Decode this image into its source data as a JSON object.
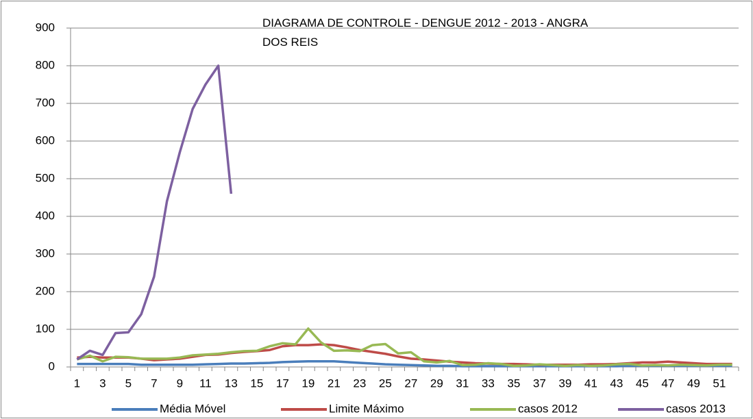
{
  "chart_data": {
    "type": "line",
    "title": "DIAGRAMA DE CONTROLE - DENGUE 2012 - 2013 - ANGRA DOS REIS",
    "categories": [
      "1",
      null,
      "3",
      null,
      "5",
      null,
      "7",
      null,
      "9",
      null,
      "11",
      null,
      "13",
      null,
      "15",
      null,
      "17",
      null,
      "19",
      null,
      "21",
      null,
      "23",
      null,
      "25",
      null,
      "27",
      null,
      "29",
      null,
      "31",
      null,
      "33",
      null,
      "35",
      null,
      "37",
      null,
      "39",
      null,
      "41",
      null,
      "43",
      null,
      "45",
      null,
      "47",
      null,
      "49",
      null,
      "51",
      null
    ],
    "series": [
      {
        "name": "Média Móvel",
        "color": "#4a7ebb",
        "values": [
          8,
          8,
          8,
          8,
          8,
          6,
          6,
          6,
          6,
          6,
          7,
          8,
          9,
          9,
          10,
          11,
          13,
          14,
          15,
          15,
          15,
          13,
          11,
          9,
          7,
          6,
          5,
          4,
          3,
          3,
          2,
          2,
          2,
          2,
          2,
          2,
          2,
          2,
          2,
          2,
          2,
          2,
          2,
          3,
          3,
          3,
          3,
          3,
          3,
          3,
          3,
          3
        ]
      },
      {
        "name": "Limite Máximo",
        "color": "#be4b48",
        "values": [
          25,
          27,
          25,
          25,
          25,
          22,
          18,
          20,
          22,
          27,
          32,
          33,
          37,
          40,
          42,
          45,
          55,
          58,
          58,
          60,
          58,
          52,
          45,
          40,
          35,
          28,
          22,
          20,
          17,
          14,
          12,
          10,
          9,
          8,
          8,
          7,
          6,
          6,
          6,
          6,
          7,
          7,
          8,
          10,
          12,
          12,
          14,
          12,
          10,
          8,
          8,
          8
        ]
      },
      {
        "name": "casos 2012",
        "color": "#98b954",
        "values": [
          20,
          30,
          15,
          27,
          26,
          22,
          22,
          22,
          25,
          31,
          33,
          35,
          39,
          42,
          43,
          55,
          63,
          60,
          102,
          65,
          43,
          44,
          42,
          58,
          61,
          36,
          39,
          15,
          12,
          16,
          5,
          6,
          10,
          8,
          3,
          4,
          7,
          5,
          3,
          5,
          3,
          4,
          7,
          8,
          4,
          5,
          4,
          6,
          5,
          4,
          6,
          6
        ]
      },
      {
        "name": "casos 2013",
        "color": "#7d60a0",
        "values": [
          20,
          43,
          32,
          90,
          92,
          140,
          240,
          440,
          570,
          685,
          750,
          800,
          460,
          null,
          null,
          null,
          null,
          null,
          null,
          null,
          null,
          null,
          null,
          null,
          null,
          null,
          null,
          null,
          null,
          null,
          null,
          null,
          null,
          null,
          null,
          null,
          null,
          null,
          null,
          null,
          null,
          null,
          null,
          null,
          null,
          null,
          null,
          null,
          null,
          null,
          null,
          null
        ]
      }
    ],
    "ylim": [
      0,
      900
    ],
    "yticks": [
      0,
      100,
      200,
      300,
      400,
      500,
      600,
      700,
      800,
      900
    ],
    "grid": true,
    "legend": "bottom"
  }
}
